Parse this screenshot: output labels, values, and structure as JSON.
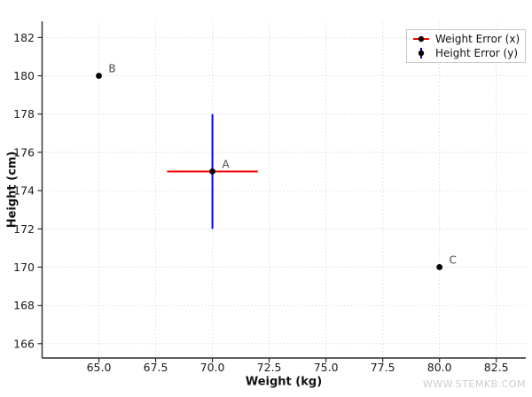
{
  "figure": {
    "watermark": "WWW.STEMKB.COM"
  },
  "chart_data": {
    "type": "scatter",
    "xlabel": "Weight (kg)",
    "ylabel": "Height (cm)",
    "xlim": [
      62.5,
      83.8
    ],
    "ylim": [
      165.25,
      182.85
    ],
    "xticks": [
      65.0,
      67.5,
      70.0,
      72.5,
      75.0,
      77.5,
      80.0,
      82.5
    ],
    "xtick_labels": [
      "65.0",
      "67.5",
      "70.0",
      "72.5",
      "75.0",
      "77.5",
      "80.0",
      "82.5"
    ],
    "yticks": [
      166,
      168,
      170,
      172,
      174,
      176,
      178,
      180,
      182
    ],
    "ytick_labels": [
      "166",
      "168",
      "170",
      "172",
      "174",
      "176",
      "178",
      "180",
      "182"
    ],
    "grid": true,
    "points": [
      {
        "label": "A",
        "x": 70,
        "y": 175,
        "xerr": 2,
        "yerr": 3
      },
      {
        "label": "B",
        "x": 65,
        "y": 180,
        "xerr": 0,
        "yerr": 0
      },
      {
        "label": "C",
        "x": 80,
        "y": 170,
        "xerr": 0,
        "yerr": 0
      }
    ],
    "legend": {
      "position": "top-right",
      "entries": [
        {
          "label": "Weight Error (x)",
          "color": "#ff0000",
          "orientation": "horizontal"
        },
        {
          "label": "Height Error (y)",
          "color": "#0000ff",
          "orientation": "vertical"
        }
      ]
    },
    "colors": {
      "marker": "#000000",
      "x_error": "#ff0000",
      "y_error": "#0000ff",
      "grid": "#dcdcdc",
      "axis": "#2b2b2b",
      "tick_label": "#1a1a1a",
      "point_label": "#484848",
      "watermark": "#cccccc"
    }
  }
}
